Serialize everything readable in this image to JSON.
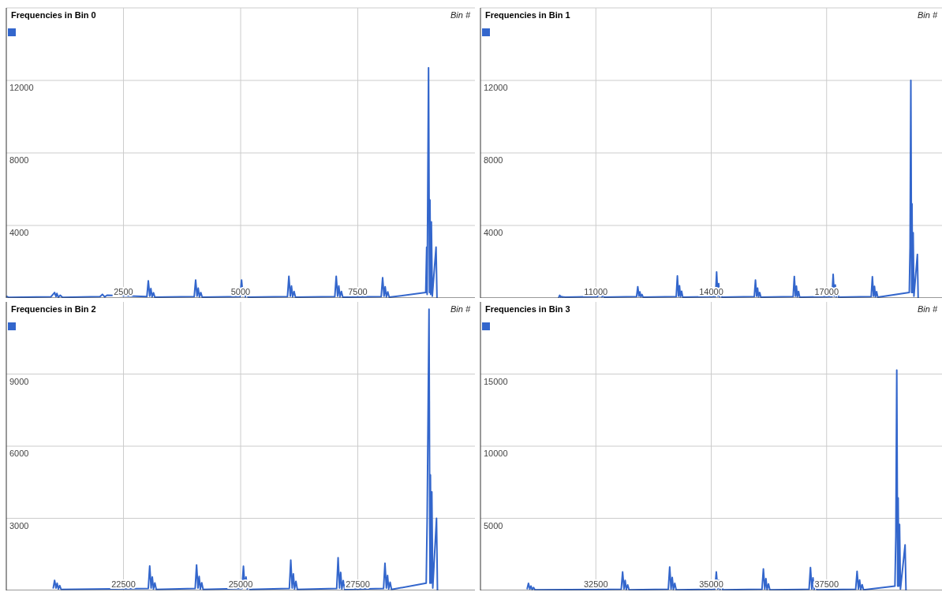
{
  "chart_data": [
    {
      "type": "line",
      "title": "Frequencies in Bin 0",
      "xlabel": "Bin #",
      "color": "#3366cc",
      "grid": true,
      "xlim": [
        0,
        10000
      ],
      "xticks": [
        2500,
        5000,
        7500
      ],
      "ylim": [
        0,
        16000
      ],
      "yticks": [
        4000,
        8000,
        12000,
        {
          "value": 16000,
          "label": null
        }
      ],
      "x": [
        0,
        50,
        950,
        1030,
        1060,
        1080,
        1110,
        1150,
        1200,
        2000,
        2050,
        2100,
        2150,
        3000,
        3030,
        3060,
        3085,
        3110,
        3140,
        3170,
        4010,
        4040,
        4070,
        4095,
        4120,
        4150,
        4180,
        4990,
        5020,
        5050,
        5075,
        5100,
        5130,
        5160,
        6000,
        6030,
        6060,
        6085,
        6110,
        6140,
        6170,
        7010,
        7040,
        7070,
        7095,
        7120,
        7150,
        7180,
        8000,
        8030,
        8060,
        8085,
        8110,
        8140,
        8170,
        8950,
        8970,
        8980,
        9010,
        9030,
        9040,
        9055,
        9070,
        9090,
        9170,
        9190
      ],
      "values": [
        100,
        30,
        60,
        300,
        80,
        250,
        40,
        150,
        30,
        80,
        200,
        60,
        150,
        80,
        950,
        100,
        520,
        60,
        290,
        40,
        80,
        990,
        100,
        540,
        60,
        300,
        40,
        80,
        990,
        100,
        540,
        60,
        300,
        40,
        80,
        1200,
        100,
        660,
        60,
        360,
        40,
        80,
        1200,
        100,
        660,
        60,
        360,
        40,
        80,
        1120,
        100,
        620,
        60,
        340,
        40,
        300,
        2800,
        200,
        12700,
        300,
        5400,
        200,
        4200,
        100,
        2800,
        0
      ]
    },
    {
      "type": "line",
      "title": "Frequencies in Bin 1",
      "xlabel": "Bin #",
      "color": "#3366cc",
      "grid": true,
      "xlim": [
        8000,
        20000
      ],
      "xticks": [
        11000,
        14000,
        17000
      ],
      "ylim": [
        0,
        16000
      ],
      "yticks": [
        4000,
        8000,
        12000,
        {
          "value": 16000,
          "label": null
        }
      ],
      "x": [
        10030,
        10060,
        10090,
        10115,
        10140,
        10170,
        10200,
        11050,
        11080,
        11110,
        11135,
        11160,
        11190,
        11220,
        12060,
        12090,
        12120,
        12145,
        12170,
        12200,
        12230,
        13090,
        13120,
        13150,
        13175,
        13200,
        13230,
        13260,
        14110,
        14140,
        14170,
        14195,
        14220,
        14250,
        14280,
        15120,
        15150,
        15180,
        15205,
        15230,
        15260,
        15290,
        16130,
        16160,
        16190,
        16215,
        16240,
        16270,
        16300,
        17140,
        17170,
        17200,
        17225,
        17250,
        17280,
        17310,
        18160,
        18190,
        18220,
        18245,
        18270,
        18300,
        18330,
        19150,
        19170,
        19190,
        19210,
        19220,
        19235,
        19250,
        19270,
        19360,
        19380
      ],
      "values": [
        0,
        150,
        50,
        80,
        40,
        60,
        40,
        80,
        370,
        100,
        300,
        60,
        200,
        40,
        80,
        620,
        100,
        340,
        60,
        190,
        40,
        80,
        1220,
        100,
        670,
        60,
        370,
        40,
        80,
        1430,
        100,
        790,
        60,
        430,
        40,
        80,
        990,
        100,
        540,
        60,
        300,
        40,
        80,
        1190,
        100,
        650,
        60,
        360,
        40,
        80,
        1300,
        100,
        720,
        60,
        390,
        40,
        80,
        1170,
        100,
        640,
        60,
        350,
        40,
        300,
        2800,
        12000,
        300,
        5200,
        300,
        3600,
        100,
        2400,
        0
      ]
    },
    {
      "type": "line",
      "title": "Frequencies in Bin 2",
      "xlabel": "Bin #",
      "color": "#3366cc",
      "grid": true,
      "xlim": [
        20000,
        30000
      ],
      "xticks": [
        22500,
        25000,
        27500
      ],
      "ylim": [
        0,
        12000
      ],
      "yticks": [
        3000,
        6000,
        9000
      ],
      "x": [
        21000,
        21030,
        21060,
        21085,
        21110,
        21140,
        21170,
        23030,
        23060,
        23090,
        23115,
        23140,
        23170,
        23200,
        24030,
        24060,
        24090,
        24115,
        24140,
        24170,
        24200,
        25030,
        25060,
        25090,
        25115,
        25140,
        25170,
        25200,
        26040,
        26070,
        26100,
        26125,
        26150,
        26180,
        26210,
        27050,
        27080,
        27110,
        27135,
        27160,
        27190,
        27220,
        28050,
        28080,
        28110,
        28135,
        28160,
        28190,
        28220,
        28960,
        28980,
        29020,
        29040,
        29050,
        29065,
        29080,
        29100,
        29180,
        29200
      ],
      "values": [
        80,
        420,
        100,
        300,
        60,
        200,
        40,
        80,
        1020,
        100,
        560,
        60,
        310,
        40,
        80,
        1060,
        100,
        580,
        60,
        320,
        40,
        80,
        1010,
        100,
        560,
        60,
        300,
        40,
        80,
        1260,
        100,
        690,
        60,
        380,
        40,
        80,
        1360,
        100,
        750,
        60,
        410,
        40,
        80,
        1130,
        100,
        620,
        60,
        340,
        40,
        300,
        2900,
        11700,
        300,
        4800,
        300,
        4100,
        100,
        3000,
        0
      ]
    },
    {
      "type": "line",
      "title": "Frequencies in Bin 3",
      "xlabel": "Bin #",
      "color": "#3366cc",
      "grid": true,
      "xlim": [
        30000,
        40000
      ],
      "xticks": [
        32500,
        35000,
        37500
      ],
      "ylim": [
        0,
        20000
      ],
      "yticks": [
        5000,
        10000,
        15000
      ],
      "x": [
        31010,
        31040,
        31070,
        31095,
        31120,
        31150,
        31180,
        33050,
        33080,
        33110,
        33135,
        33160,
        33190,
        33220,
        34070,
        34100,
        34130,
        34155,
        34180,
        34210,
        34240,
        35080,
        35110,
        35140,
        35165,
        35190,
        35220,
        35250,
        36100,
        36130,
        36160,
        36185,
        36210,
        36240,
        36270,
        37120,
        37150,
        37180,
        37205,
        37230,
        37260,
        37290,
        38130,
        38160,
        38190,
        38215,
        38240,
        38270,
        38300,
        38980,
        39000,
        39020,
        39040,
        39050,
        39065,
        39080,
        39100,
        39200,
        39220
      ],
      "values": [
        80,
        490,
        100,
        300,
        60,
        200,
        40,
        80,
        1280,
        100,
        700,
        60,
        380,
        40,
        80,
        1630,
        100,
        900,
        60,
        490,
        40,
        80,
        1280,
        100,
        700,
        60,
        380,
        40,
        80,
        1490,
        100,
        820,
        60,
        450,
        40,
        80,
        1590,
        100,
        870,
        60,
        480,
        40,
        80,
        1320,
        100,
        730,
        60,
        400,
        40,
        300,
        3750,
        15270,
        300,
        6410,
        300,
        4570,
        100,
        3150,
        0
      ]
    }
  ]
}
